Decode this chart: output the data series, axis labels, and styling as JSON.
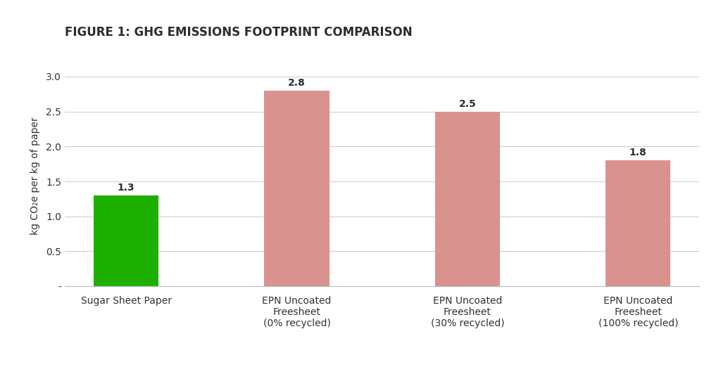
{
  "title": "FIGURE 1: GHG EMISSIONS FOOTPRINT COMPARISON",
  "categories": [
    "Sugar Sheet Paper",
    "EPN Uncoated\nFreesheet\n(0% recycled)",
    "EPN Uncoated\nFreesheet\n(30% recycled)",
    "EPN Uncoated\nFreesheet\n(100% recycled)"
  ],
  "values": [
    1.3,
    2.8,
    2.5,
    1.8
  ],
  "bar_colors": [
    "#1db000",
    "#d9928e",
    "#d9928e",
    "#d9928e"
  ],
  "ylabel": "kg CO₂e per kg of paper",
  "ylim": [
    0,
    3.15
  ],
  "yticks": [
    0.0,
    0.5,
    1.0,
    1.5,
    2.0,
    2.5,
    3.0
  ],
  "ytick_labels": [
    "-",
    "0.5",
    "1.0",
    "1.5",
    "2.0",
    "2.5",
    "3.0"
  ],
  "background_color": "#ffffff",
  "plot_background": "#ffffff",
  "title_fontsize": 12,
  "label_fontsize": 10,
  "value_fontsize": 10,
  "bar_width": 0.38,
  "grid_color": "#d0d0d0",
  "text_color": "#333333",
  "title_color": "#2d2d2d"
}
